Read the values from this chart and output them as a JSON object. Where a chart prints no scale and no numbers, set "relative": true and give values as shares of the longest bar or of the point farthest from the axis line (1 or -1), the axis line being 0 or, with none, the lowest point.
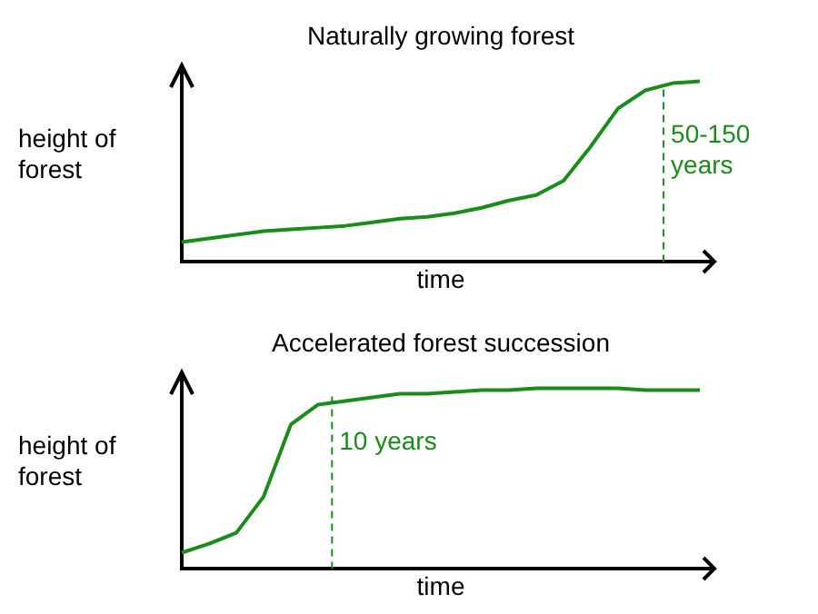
{
  "chart_data": [
    {
      "type": "line",
      "title": "Naturally growing forest",
      "xlabel": "time",
      "ylabel": "height of forest",
      "relative": true,
      "grid": false,
      "marker": "none",
      "line_style": "solid",
      "categories": [
        null,
        null,
        null,
        null,
        null,
        null,
        null,
        null,
        null,
        null,
        null,
        null,
        null,
        null,
        null,
        null,
        null,
        null,
        null,
        null
      ],
      "values": [
        0.11,
        0.13,
        0.15,
        0.17,
        0.18,
        0.19,
        0.2,
        0.22,
        0.24,
        0.25,
        0.27,
        0.3,
        0.34,
        0.37,
        0.45,
        0.64,
        0.85,
        0.95,
        0.99,
        1
      ],
      "color": "#1a8c1a",
      "annotations": [
        "50-150 years"
      ]
    },
    {
      "type": "line",
      "title": "Accelerated forest succession",
      "xlabel": "time",
      "ylabel": "height of forest",
      "relative": true,
      "grid": false,
      "marker": "none",
      "line_style": "solid",
      "categories": [
        null,
        null,
        null,
        null,
        null,
        null,
        null,
        null,
        null,
        null,
        null,
        null,
        null,
        null,
        null,
        null,
        null,
        null,
        null,
        null
      ],
      "values": [
        0.09,
        0.14,
        0.2,
        0.4,
        0.8,
        0.91,
        0.93,
        0.95,
        0.97,
        0.97,
        0.98,
        0.99,
        0.99,
        1,
        1,
        1,
        1,
        0.99,
        0.99,
        0.99
      ],
      "color": "#1a8c1a",
      "annotations": [
        "10 years"
      ]
    }
  ]
}
